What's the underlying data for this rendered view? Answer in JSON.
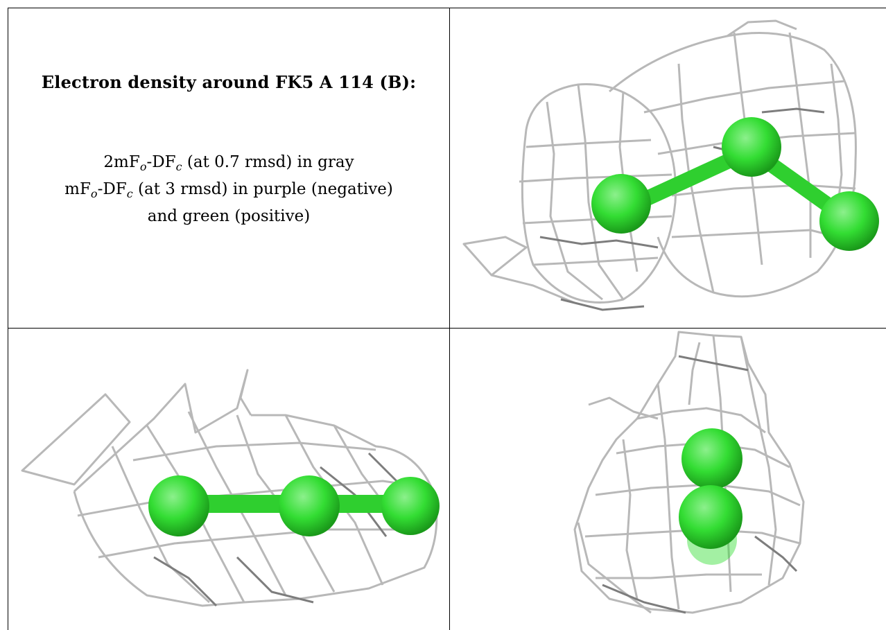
{
  "title": "Electron density around FK5 A 114 (B):",
  "legend": {
    "line1": {
      "prefix": "2mF",
      "sub1": "o",
      "mid": "-DF",
      "sub2": "c",
      "suffix": " (at 0.7 rmsd) in gray"
    },
    "line2": {
      "prefix": "mF",
      "sub1": "o",
      "mid": "-DF",
      "sub2": "c",
      "suffix": " (at 3 rmsd) in purple (negative)"
    },
    "line3": "and green (positive)"
  },
  "colors": {
    "atom": "#33dd33",
    "mesh": "#b4b4b4",
    "mesh_dark": "#7a7a7a",
    "border": "#000000"
  }
}
